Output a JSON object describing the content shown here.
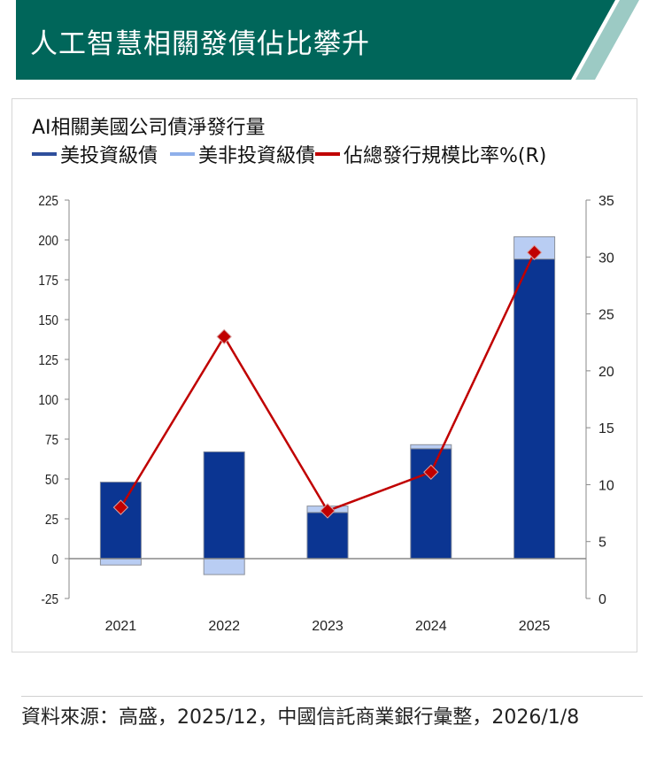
{
  "header": {
    "title": "人工智慧相關發債佔比攀升"
  },
  "colors": {
    "banner": "#00665a",
    "stripe": "#9ccac4",
    "ig": "#0b3592",
    "hy": "#b9cdf3",
    "ratio": "#c00000"
  },
  "chart_data": {
    "type": "bar+line",
    "title": "AI相關美國公司債淨發行量",
    "categories": [
      "2021",
      "2022",
      "2023",
      "2024",
      "2025"
    ],
    "series": [
      {
        "name": "美投資級債",
        "type": "stacked-bar",
        "axis": "left",
        "values": [
          48,
          67,
          29,
          69,
          188
        ]
      },
      {
        "name": "美非投資級債",
        "type": "stacked-bar",
        "axis": "left",
        "values": [
          -4,
          -10,
          4,
          2.5,
          14
        ]
      },
      {
        "name": "佔總發行規模比率%(R)",
        "type": "line",
        "axis": "right",
        "values": [
          8.0,
          23.0,
          7.7,
          11.1,
          30.4
        ]
      }
    ],
    "ylim_left": [
      -25,
      225
    ],
    "yticks_left": [
      "225",
      "200",
      "175",
      "150",
      "125",
      "100",
      "75",
      "50",
      "25",
      "0",
      "-25"
    ],
    "ylim_right": [
      0,
      35
    ],
    "yticks_right": [
      "35",
      "30",
      "25",
      "20",
      "15",
      "10",
      "5",
      "0"
    ],
    "legend_position": "top-left",
    "grid": false
  },
  "footer": {
    "source": "資料來源：高盛，2025/12，中國信託商業銀行彙整，2026/1/8"
  }
}
